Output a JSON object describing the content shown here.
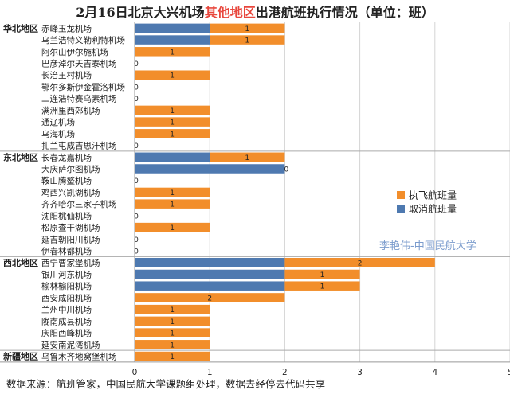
{
  "title": {
    "prefix": "2月16日北京大兴机场",
    "highlight": "其他地区",
    "suffix": "出港航班执行情况（单位：班）",
    "highlight_color": "#e8473d"
  },
  "watermark": "李艳伟-中国民航大学",
  "footer": "数据来源：航班管家，中国民航大学课题组处理，数据去经停去代码共享",
  "chart_data": {
    "type": "bar",
    "orientation": "horizontal",
    "stacked": true,
    "xlim": [
      0,
      5
    ],
    "xticks": [
      0,
      1,
      2,
      3,
      4,
      5
    ],
    "legend_position": "right",
    "groups": [
      {
        "name": "华北地区",
        "count": 11
      },
      {
        "name": "东北地区",
        "count": 9
      },
      {
        "name": "西北地区",
        "count": 8
      },
      {
        "name": "新疆地区",
        "count": 1
      }
    ],
    "categories": [
      "赤峰玉龙机场",
      "乌兰浩特义勒利特机场",
      "阿尔山伊尔施机场",
      "巴彦淖尔天吉泰机场",
      "长治王村机场",
      "鄂尔多斯伊金霍洛机场",
      "二连浩特赛乌素机场",
      "满洲里西郊机场",
      "通辽机场",
      "乌海机场",
      "扎兰屯成吉思汗机场",
      "长春龙嘉机场",
      "大庆萨尔图机场",
      "鞍山腾鳌机场",
      "鸡西兴凯湖机场",
      "齐齐哈尔三家子机场",
      "沈阳桃仙机场",
      "松原查干湖机场",
      "延吉朝阳川机场",
      "伊春林都机场",
      "西宁曹家堡机场",
      "银川河东机场",
      "榆林榆阳机场",
      "西安咸阳机场",
      "兰州中川机场",
      "陇南成县机场",
      "庆阳西峰机场",
      "延安南泥湾机场",
      "乌鲁木齐地窝堡机场"
    ],
    "series": [
      {
        "name": "取消航班量",
        "color": "#4e79b0",
        "values": [
          1,
          1,
          0,
          0,
          0,
          0,
          0,
          0,
          0,
          0,
          0,
          1,
          2,
          0,
          0,
          0,
          0,
          0,
          0,
          0,
          2,
          2,
          2,
          0,
          0,
          0,
          0,
          0,
          0
        ]
      },
      {
        "name": "执飞航班量",
        "color": "#f28e2b",
        "values": [
          1,
          1,
          1,
          0,
          1,
          0,
          0,
          1,
          1,
          1,
          0,
          1,
          0,
          0,
          1,
          1,
          0,
          1,
          0,
          0,
          2,
          1,
          1,
          2,
          1,
          1,
          1,
          1,
          1
        ]
      }
    ],
    "label_series": "执飞航班量",
    "legend_order": [
      "执飞航班量",
      "取消航班量"
    ]
  }
}
